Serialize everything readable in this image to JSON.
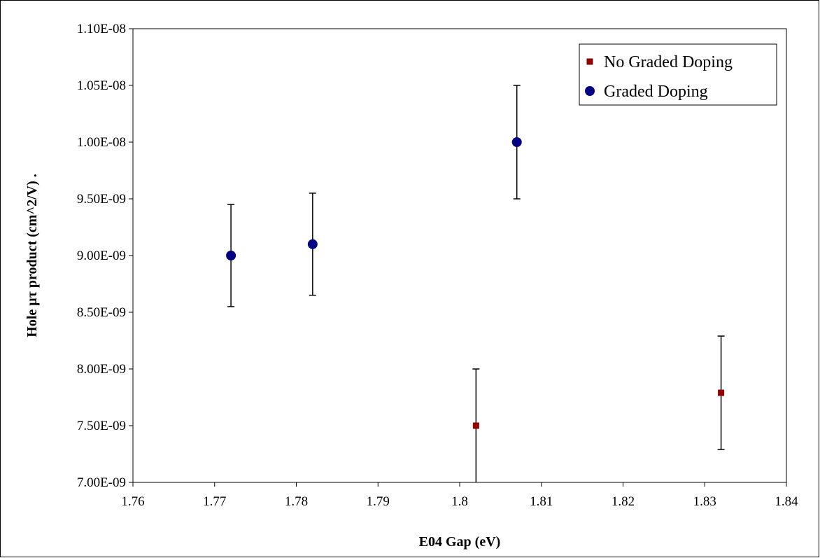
{
  "chart_data": {
    "type": "scatter",
    "xlabel": "E04 Gap (eV)",
    "ylabel": "Hole μτ product (cm^2/V) .",
    "xlim": [
      1.76,
      1.84
    ],
    "ylim": [
      7e-09,
      1.1e-08
    ],
    "x_ticks": [
      "1.76",
      "1.77",
      "1.78",
      "1.79",
      "1.8",
      "1.81",
      "1.82",
      "1.83",
      "1.84"
    ],
    "y_ticks": [
      "7.00E-09",
      "7.50E-09",
      "8.00E-09",
      "8.50E-09",
      "9.00E-09",
      "9.50E-09",
      "1.00E-08",
      "1.05E-08",
      "1.10E-08"
    ],
    "grid": false,
    "legend_position": "top-right",
    "series": [
      {
        "name": "No Graded Doping",
        "marker": "square",
        "color": "#8b0000",
        "points": [
          {
            "x": 1.802,
            "y": 7.5e-09,
            "err_low": 7e-09,
            "err_high": 8e-09
          },
          {
            "x": 1.832,
            "y": 7.79e-09,
            "err_low": 7.29e-09,
            "err_high": 8.29e-09
          }
        ]
      },
      {
        "name": "Graded Doping",
        "marker": "circle",
        "color": "#000080",
        "points": [
          {
            "x": 1.772,
            "y": 9e-09,
            "err_low": 8.55e-09,
            "err_high": 9.45e-09
          },
          {
            "x": 1.782,
            "y": 9.1e-09,
            "err_low": 8.65e-09,
            "err_high": 9.55e-09
          },
          {
            "x": 1.807,
            "y": 1e-08,
            "err_low": 9.5e-09,
            "err_high": 1.05e-08
          }
        ]
      }
    ]
  }
}
